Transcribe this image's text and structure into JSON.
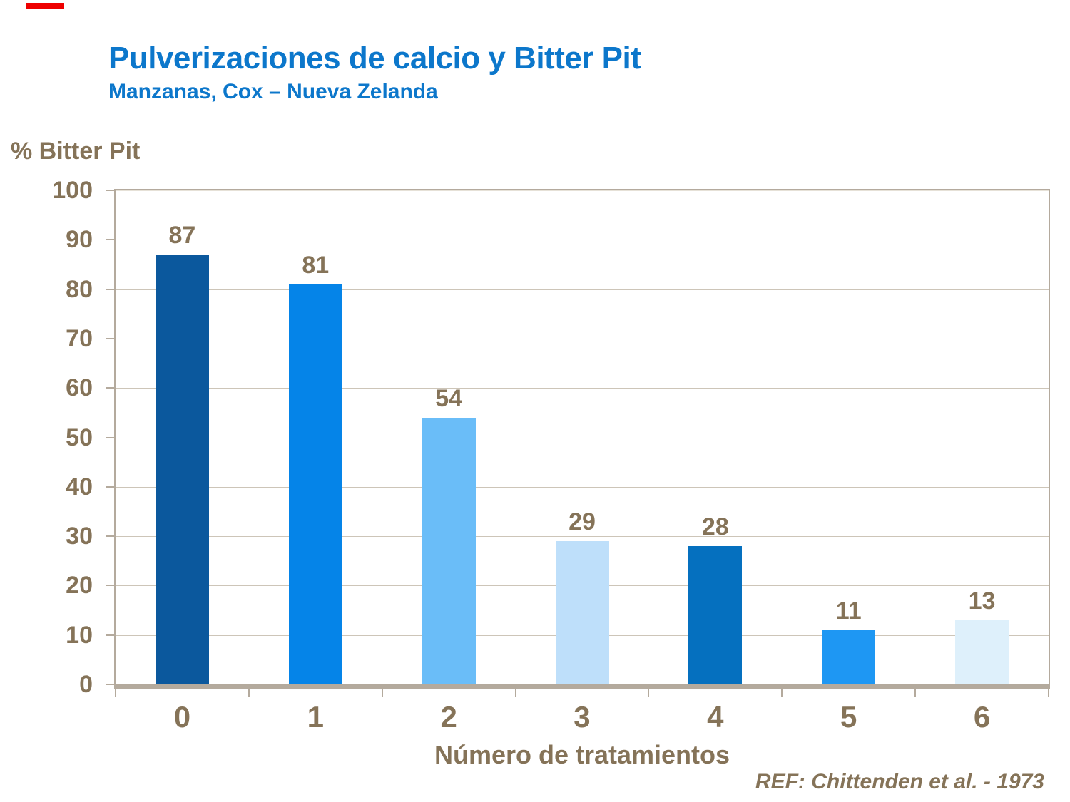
{
  "colors": {
    "title_blue": "#0c77cb",
    "text_brown": "#857358",
    "axis_tan": "#b4aa9d",
    "gridline": "#cdc5b8",
    "accent_red": "#ee0000"
  },
  "header": {
    "title": "Pulverizaciones de calcio y Bitter Pit",
    "subtitle": "Manzanas, Cox – Nueva Zelanda"
  },
  "chart_data": {
    "type": "bar",
    "title": "Pulverizaciones de calcio y Bitter Pit",
    "subtitle": "Manzanas, Cox – Nueva Zelanda",
    "categories": [
      "0",
      "1",
      "2",
      "3",
      "4",
      "5",
      "6"
    ],
    "values": [
      87,
      81,
      54,
      29,
      28,
      11,
      13
    ],
    "bar_colors": [
      "#0b589d",
      "#0584e8",
      "#6abdf8",
      "#bedffa",
      "#0570bf",
      "#1e97f3",
      "#def0fb"
    ],
    "xlabel": "Número de tratamientos",
    "ylabel": "% Bitter Pit",
    "ylim": [
      0,
      100
    ],
    "yticks": [
      0,
      10,
      20,
      30,
      40,
      50,
      60,
      70,
      80,
      90,
      100
    ],
    "grid": true,
    "legend": false,
    "value_labels": true
  },
  "footer": {
    "reference": "REF: Chittenden et al. - 1973"
  }
}
